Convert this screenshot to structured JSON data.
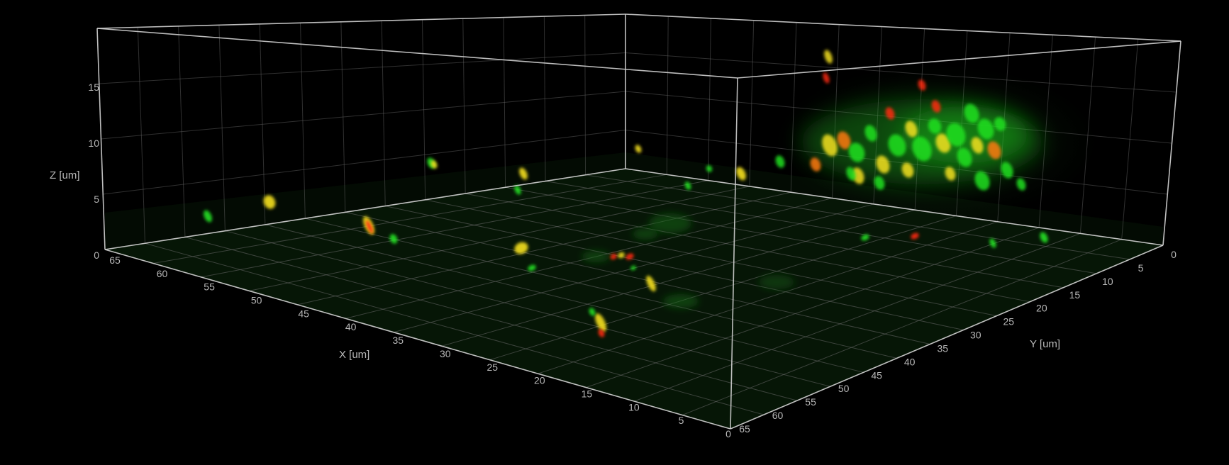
{
  "axes": {
    "x": {
      "label": "X [um]",
      "ticks": [
        "65",
        "60",
        "55",
        "50",
        "45",
        "40",
        "35",
        "30",
        "25",
        "20",
        "15",
        "10",
        "5",
        "0"
      ]
    },
    "y": {
      "label": "Y [um]",
      "ticks": [
        "0",
        "5",
        "10",
        "15",
        "20",
        "25",
        "30",
        "35",
        "40",
        "45",
        "50",
        "55",
        "60",
        "65"
      ]
    },
    "z": {
      "label": "Z [um]",
      "ticks": [
        "0",
        "5",
        "10",
        "15"
      ]
    }
  },
  "colors": {
    "background": "#000000",
    "box_edges": "#d0d0d0",
    "grid": "#6a6a6a",
    "green_channel": "#22e022",
    "red_channel": "#ff2a10",
    "colocalized": "#f5e020"
  }
}
